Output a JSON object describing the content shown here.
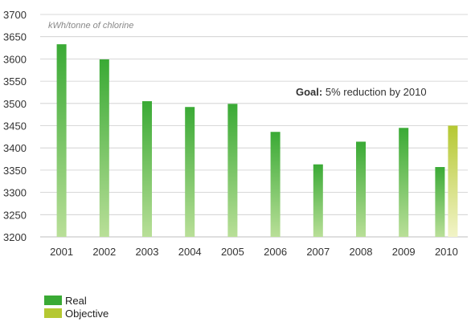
{
  "chart_data": {
    "type": "bar",
    "unit_label": "kWh/tonne of chlorine",
    "categories": [
      "2001",
      "2002",
      "2003",
      "2004",
      "2005",
      "2006",
      "2007",
      "2008",
      "2009",
      "2010"
    ],
    "series": [
      {
        "name": "Real",
        "values": [
          3633,
          3599,
          3505,
          3492,
          3499,
          3436,
          3363,
          3414,
          3445,
          3357
        ]
      },
      {
        "name": "Objective",
        "values": [
          null,
          null,
          null,
          null,
          null,
          null,
          null,
          null,
          null,
          3450
        ]
      }
    ],
    "ylim": [
      3200,
      3700
    ],
    "yticks": [
      3200,
      3250,
      3300,
      3350,
      3400,
      3450,
      3500,
      3550,
      3600,
      3650,
      3700
    ],
    "grid": true,
    "legend_position": "bottom-left",
    "annotation": {
      "bold": "Goal:",
      "text": " 5% reduction by 2010"
    },
    "colors": {
      "real_top": "#3aaa35",
      "real_bottom": "#b9df98",
      "objective_top": "#b5c832",
      "objective_bottom": "#f2f4c8",
      "grid": "#cccccc"
    }
  }
}
